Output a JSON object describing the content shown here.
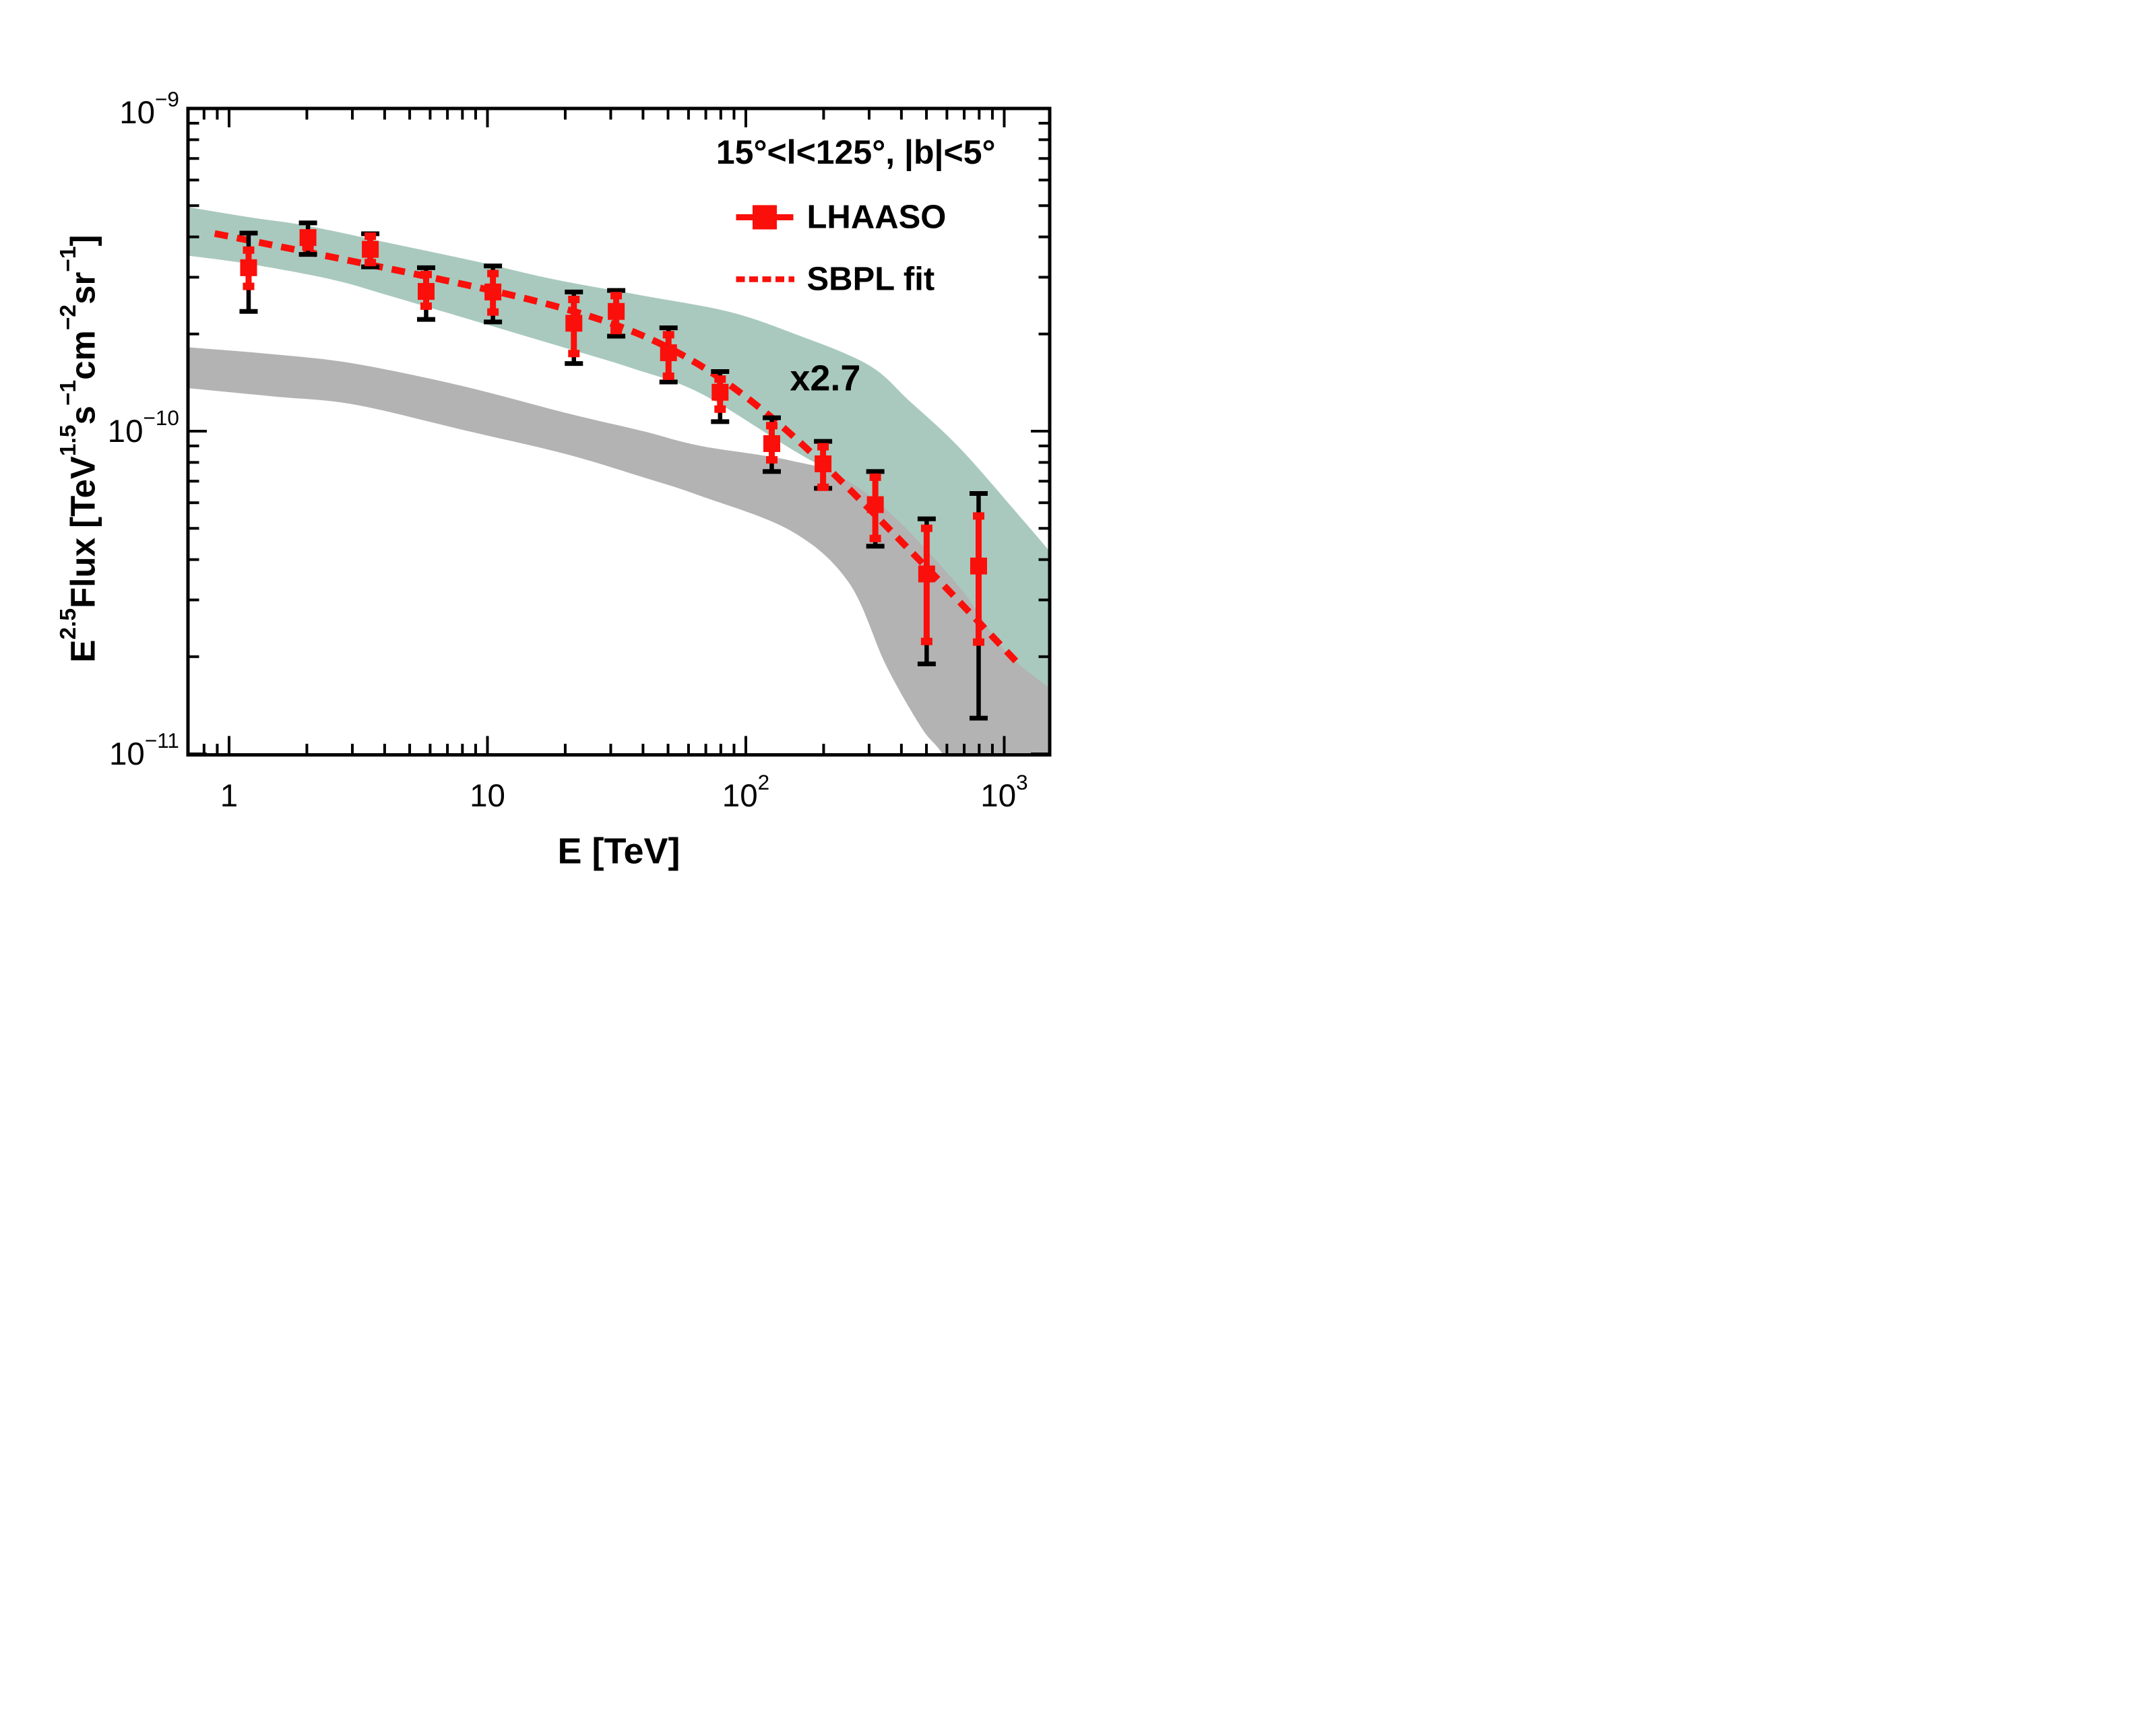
{
  "chart_data": {
    "type": "scatter",
    "title": "15°<l<125°, |b|<5°",
    "xlabel": "E [TeV]",
    "ylabel_parts": [
      {
        "t": "E"
      },
      {
        "t": "2.5",
        "sup": true
      },
      {
        "t": "Flux [TeV"
      },
      {
        "t": "1.5",
        "sup": true
      },
      {
        "t": "s"
      },
      {
        "t": "−1",
        "sup": true
      },
      {
        "t": "cm"
      },
      {
        "t": "−2",
        "sup": true
      },
      {
        "t": "sr"
      },
      {
        "t": "−1",
        "sup": true
      },
      {
        "t": "]"
      }
    ],
    "xlim": [
      0.693,
      1500
    ],
    "ylim": [
      1e-11,
      1e-09
    ],
    "grid": false,
    "x_ticks": [
      {
        "v": 1,
        "base": "1",
        "exp": ""
      },
      {
        "v": 10,
        "base": "10",
        "exp": ""
      },
      {
        "v": 100,
        "base": "10",
        "exp": "2"
      },
      {
        "v": 1000,
        "base": "10",
        "exp": "3"
      }
    ],
    "y_ticks": [
      {
        "v": 1e-09,
        "base": "10",
        "exp": "−9"
      },
      {
        "v": 1e-10,
        "base": "10",
        "exp": "−10"
      },
      {
        "v": 1e-11,
        "base": "10",
        "exp": "−11"
      }
    ],
    "legend": {
      "position": "upper-right",
      "entries": [
        {
          "label": "LHAASO",
          "type": "square-marker-with-line"
        },
        {
          "label": "SBPL fit",
          "type": "dashed-line"
        }
      ]
    },
    "annotations": [
      {
        "text": "x2.7",
        "E": 203,
        "F": 1.46e-10
      }
    ],
    "colors": {
      "accent_red": "#fa0f0a",
      "band_green": "#a9c9be",
      "band_gray": "#b3b3b3",
      "ink": "#000000"
    },
    "series": [
      {
        "name": "LHAASO",
        "marker": "filled-square",
        "points": [
          {
            "E": 1.19,
            "F": 3.21e-10,
            "tot_lo": 2.35e-10,
            "tot_hi": 4.11e-10,
            "stat_lo": 2.81e-10,
            "stat_hi": 3.64e-10
          },
          {
            "E": 2.02,
            "F": 3.98e-10,
            "tot_lo": 3.53e-10,
            "tot_hi": 4.42e-10,
            "stat_lo": 3.72e-10,
            "stat_hi": 4.11e-10
          },
          {
            "E": 3.52,
            "F": 3.66e-10,
            "tot_lo": 3.23e-10,
            "tot_hi": 4.09e-10,
            "stat_lo": 3.33e-10,
            "stat_hi": 4.02e-10
          },
          {
            "E": 5.79,
            "F": 2.71e-10,
            "tot_lo": 2.22e-10,
            "tot_hi": 3.21e-10,
            "stat_lo": 2.44e-10,
            "stat_hi": 3.06e-10
          },
          {
            "E": 10.5,
            "F": 2.7e-10,
            "tot_lo": 2.18e-10,
            "tot_hi": 3.25e-10,
            "stat_lo": 2.34e-10,
            "stat_hi": 3.08e-10
          },
          {
            "E": 21.6,
            "F": 2.16e-10,
            "tot_lo": 1.62e-10,
            "tot_hi": 2.7e-10,
            "stat_lo": 1.74e-10,
            "stat_hi": 2.56e-10
          },
          {
            "E": 31.5,
            "F": 2.35e-10,
            "tot_lo": 1.97e-10,
            "tot_hi": 2.73e-10,
            "stat_lo": 2.05e-10,
            "stat_hi": 2.63e-10
          },
          {
            "E": 50.2,
            "F": 1.75e-10,
            "tot_lo": 1.42e-10,
            "tot_hi": 2.09e-10,
            "stat_lo": 1.48e-10,
            "stat_hi": 1.99e-10
          },
          {
            "E": 79.5,
            "F": 1.32e-10,
            "tot_lo": 1.07e-10,
            "tot_hi": 1.53e-10,
            "stat_lo": 1.17e-10,
            "stat_hi": 1.45e-10
          },
          {
            "E": 126,
            "F": 9.15e-11,
            "tot_lo": 7.5e-11,
            "tot_hi": 1.1e-10,
            "stat_lo": 8.15e-11,
            "stat_hi": 1.04e-10
          },
          {
            "E": 199,
            "F": 7.92e-11,
            "tot_lo": 6.65e-11,
            "tot_hi": 9.3e-11,
            "stat_lo": 6.7e-11,
            "stat_hi": 8.95e-11
          },
          {
            "E": 317,
            "F": 5.92e-11,
            "tot_lo": 4.4e-11,
            "tot_hi": 7.5e-11,
            "stat_lo": 4.65e-11,
            "stat_hi": 7.2e-11
          },
          {
            "E": 501,
            "F": 3.61e-11,
            "tot_lo": 1.9e-11,
            "tot_hi": 5.35e-11,
            "stat_lo": 2.23e-11,
            "stat_hi": 5e-11
          },
          {
            "E": 796,
            "F": 3.82e-11,
            "tot_lo": 1.29e-11,
            "tot_hi": 6.41e-11,
            "stat_lo": 2.22e-11,
            "stat_hi": 5.46e-11
          }
        ]
      }
    ],
    "fit": {
      "name": "SBPL fit",
      "model": "smoothly-broken-power-law",
      "C": 4.015e-10,
      "a": 0.16,
      "b": 0.85,
      "Eb": 70,
      "w": 1.8,
      "Emin": 0.88,
      "Emax": 1150
    },
    "bands": [
      {
        "name": "model-band-x2.7",
        "color": "#a9c9be",
        "top": [
          [
            0.69,
            4.95e-10
          ],
          [
            1.2,
            4.6e-10
          ],
          [
            2.0,
            4.33e-10
          ],
          [
            4.23,
            3.82e-10
          ],
          [
            9.0,
            3.36e-10
          ],
          [
            17.9,
            2.96e-10
          ],
          [
            40,
            2.63e-10
          ],
          [
            85,
            2.35e-10
          ],
          [
            150,
            2.02e-10
          ],
          [
            296,
            1.61e-10
          ],
          [
            430,
            1.24e-10
          ],
          [
            679,
            8.8e-11
          ],
          [
            1159,
            5.4e-11
          ],
          [
            1497,
            4.25e-11
          ]
        ],
        "bottom": [
          [
            0.69,
            3.5e-10
          ],
          [
            1.19,
            3.3e-10
          ],
          [
            2.5,
            2.95e-10
          ],
          [
            4.23,
            2.62e-10
          ],
          [
            9.2,
            2.18e-10
          ],
          [
            17.9,
            1.86e-10
          ],
          [
            36,
            1.57e-10
          ],
          [
            66.8,
            1.31e-10
          ],
          [
            150,
            8.8e-11
          ],
          [
            318,
            6.1e-11
          ],
          [
            652,
            3.38e-11
          ],
          [
            1000,
            2.1e-11
          ],
          [
            1496,
            1.6e-11
          ]
        ]
      },
      {
        "name": "model-band",
        "color": "#b3b3b3",
        "top": [
          [
            0.69,
            1.82e-10
          ],
          [
            1.5,
            1.73e-10
          ],
          [
            3.04,
            1.62e-10
          ],
          [
            8,
            1.38e-10
          ],
          [
            20,
            1.14e-10
          ],
          [
            40,
            1e-10
          ],
          [
            66.8,
            9e-11
          ],
          [
            150,
            8.1e-11
          ],
          [
            319,
            6.8e-11
          ],
          [
            500,
            4.6e-11
          ],
          [
            695,
            3.4e-11
          ],
          [
            1000,
            2.6e-11
          ],
          [
            1500,
            1.9e-11
          ]
        ],
        "bottom": [
          [
            0.69,
            1.36e-10
          ],
          [
            1.5,
            1.28e-10
          ],
          [
            3.04,
            1.21e-10
          ],
          [
            8,
            1.01e-10
          ],
          [
            20,
            8.5e-11
          ],
          [
            40,
            7.2e-11
          ],
          [
            66.8,
            6.3e-11
          ],
          [
            150,
            4.9e-11
          ],
          [
            250,
            3.4e-11
          ],
          [
            349,
            1.88e-11
          ],
          [
            480,
            1.2e-11
          ],
          [
            600,
            9.5e-12
          ],
          [
            900,
            5e-12
          ],
          [
            1500,
            2.4e-12
          ]
        ]
      }
    ]
  }
}
